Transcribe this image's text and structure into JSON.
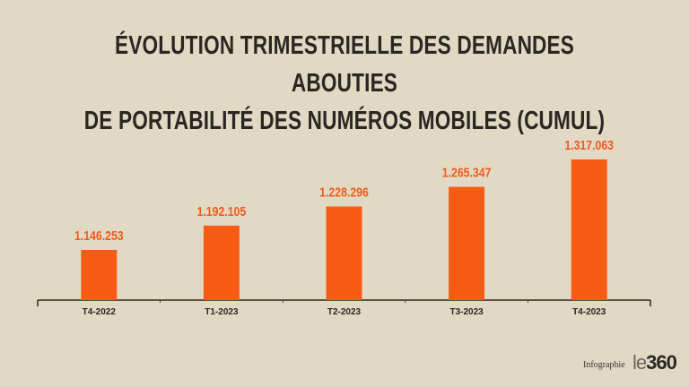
{
  "chart_data": {
    "type": "bar",
    "title_lines": [
      "ÉVOLUTION TRIMESTRIELLE DES DEMANDES ABOUTIES",
      "DE PORTABILITÉ DES NUMÉROS MOBILES (CUMUL)"
    ],
    "categories": [
      "T4-2022",
      "T1-2023",
      "T2-2023",
      "T3-2023",
      "T4-2023"
    ],
    "values": [
      1146253,
      1192105,
      1228296,
      1265347,
      1317063
    ],
    "labels": [
      "1.146.253",
      "1.192.105",
      "1.228.296",
      "1.265.347",
      "1.317.063"
    ],
    "ylim": [
      1051500,
      1317063
    ],
    "bar_color": "#f85c14",
    "grid": false,
    "xlabel": "",
    "ylabel": ""
  },
  "footer": {
    "credit": "Infographie",
    "logo_prefix": "le",
    "logo_suffix": "360"
  }
}
